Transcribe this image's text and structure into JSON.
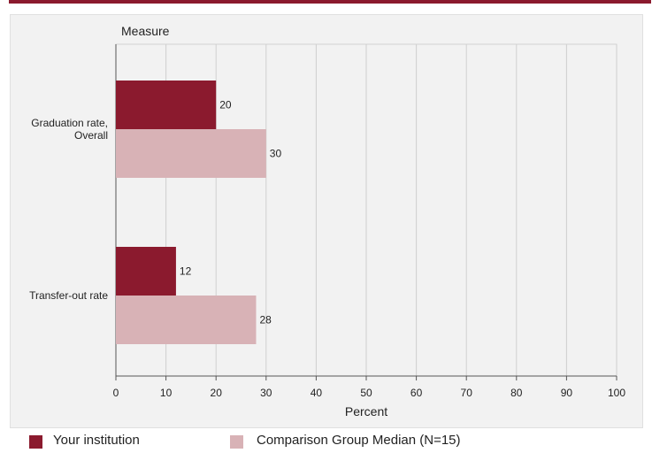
{
  "chart_data": {
    "type": "bar",
    "orientation": "horizontal",
    "category_axis_title": "Measure",
    "xlabel": "Percent",
    "categories": [
      "Graduation rate, Overall",
      "Transfer-out rate"
    ],
    "category_label_lines": [
      [
        "Graduation rate,",
        "Overall"
      ],
      [
        "Transfer-out rate"
      ]
    ],
    "series": [
      {
        "name": "Your institution",
        "values": [
          20,
          12
        ],
        "color": "#8b1a2e"
      },
      {
        "name": "Comparison Group Median (N=15)",
        "values": [
          30,
          28
        ],
        "color": "#d8b2b6"
      }
    ],
    "xlim": [
      0,
      100
    ],
    "xticks": [
      "0",
      "10",
      "20",
      "30",
      "40",
      "50",
      "60",
      "70",
      "80",
      "90",
      "100"
    ],
    "grid": true,
    "legend_position": "bottom"
  },
  "colors": {
    "accent": "#8b1a2e",
    "comparison": "#d8b2b6",
    "plot_background": "#f2f2f2"
  }
}
